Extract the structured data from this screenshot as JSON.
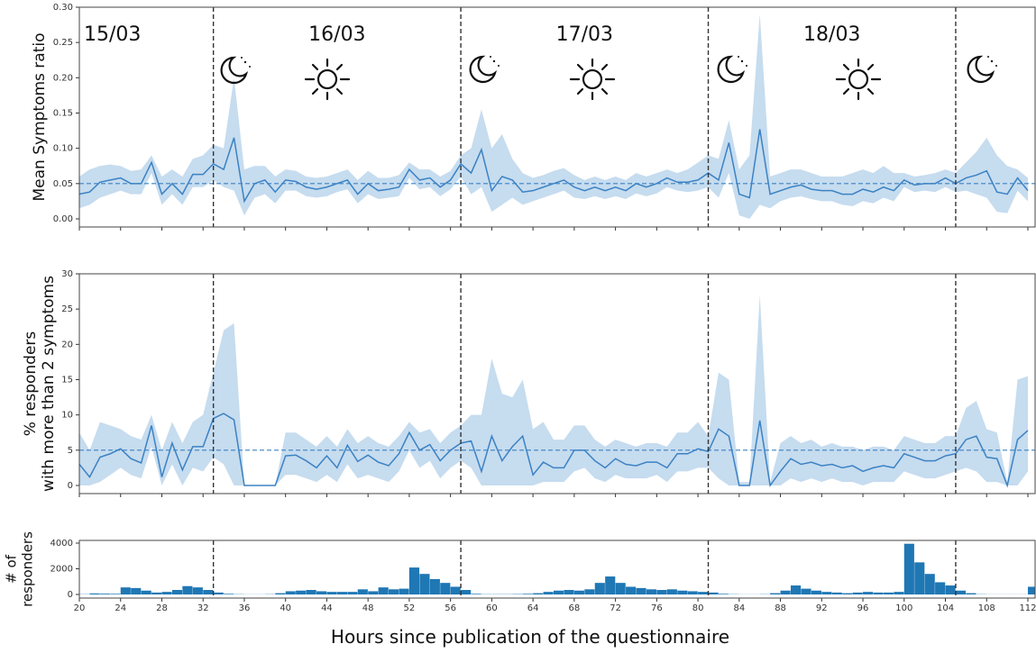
{
  "chart_data": [
    {
      "type": "line",
      "ylabel": "Mean Symptoms ratio",
      "day_labels": [
        "15/03",
        "16/03",
        "17/03",
        "18/03"
      ],
      "xlim": [
        20,
        112.7
      ],
      "ylim": [
        -0.0115,
        0.3
      ],
      "yticks": [
        {
          "value": 0,
          "label": "0.00"
        },
        {
          "value": 0.05,
          "label": "0.05"
        },
        {
          "value": 0.1,
          "label": "0.10"
        },
        {
          "value": 0.15,
          "label": "0.15"
        },
        {
          "value": 0.2,
          "label": "0.20"
        },
        {
          "value": 0.25,
          "label": "0.25"
        },
        {
          "value": 0.3,
          "label": "0.30"
        }
      ],
      "vlines": [
        33,
        57,
        81,
        105
      ],
      "hline": 0.05,
      "color": "#3b82c4",
      "band_color": "#bcd6ec",
      "x": [
        20,
        21,
        22,
        23,
        24,
        25,
        26,
        27,
        28,
        29,
        30,
        31,
        32,
        33,
        34,
        35,
        36,
        37,
        38,
        39,
        40,
        41,
        42,
        43,
        44,
        45,
        46,
        47,
        48,
        49,
        50,
        51,
        52,
        53,
        54,
        55,
        56,
        57,
        58,
        59,
        60,
        61,
        62,
        63,
        64,
        65,
        66,
        67,
        68,
        69,
        70,
        71,
        72,
        73,
        74,
        75,
        76,
        77,
        78,
        79,
        80,
        81,
        82,
        83,
        84,
        85,
        86,
        87,
        88,
        89,
        90,
        91,
        92,
        93,
        94,
        95,
        96,
        97,
        98,
        99,
        100,
        101,
        102,
        103,
        104,
        105,
        106,
        107,
        108,
        109,
        110,
        111,
        112
      ],
      "values": [
        0.035,
        0.038,
        0.052,
        0.055,
        0.058,
        0.05,
        0.05,
        0.08,
        0.035,
        0.05,
        0.035,
        0.063,
        0.063,
        0.078,
        0.07,
        0.115,
        0.025,
        0.05,
        0.055,
        0.038,
        0.055,
        0.053,
        0.045,
        0.042,
        0.045,
        0.05,
        0.055,
        0.035,
        0.05,
        0.04,
        0.042,
        0.045,
        0.07,
        0.055,
        0.058,
        0.045,
        0.055,
        0.078,
        0.065,
        0.098,
        0.04,
        0.06,
        0.055,
        0.038,
        0.04,
        0.045,
        0.05,
        0.055,
        0.045,
        0.04,
        0.045,
        0.04,
        0.045,
        0.04,
        0.05,
        0.045,
        0.05,
        0.058,
        0.052,
        0.052,
        0.055,
        0.065,
        0.055,
        0.108,
        0.035,
        0.03,
        0.127,
        0.035,
        0.04,
        0.045,
        0.048,
        0.042,
        0.04,
        0.04,
        0.035,
        0.035,
        0.042,
        0.038,
        0.045,
        0.04,
        0.055,
        0.048,
        0.05,
        0.05,
        0.058,
        0.05,
        0.058,
        0.062,
        0.068,
        0.038,
        0.035,
        0.058,
        0.04
      ],
      "upper": [
        0.06,
        0.07,
        0.075,
        0.077,
        0.075,
        0.068,
        0.07,
        0.09,
        0.06,
        0.07,
        0.06,
        0.085,
        0.09,
        0.105,
        0.1,
        0.2,
        0.07,
        0.075,
        0.075,
        0.06,
        0.07,
        0.068,
        0.06,
        0.058,
        0.06,
        0.065,
        0.07,
        0.055,
        0.068,
        0.058,
        0.058,
        0.062,
        0.08,
        0.07,
        0.07,
        0.06,
        0.068,
        0.09,
        0.1,
        0.155,
        0.1,
        0.12,
        0.085,
        0.065,
        0.058,
        0.062,
        0.068,
        0.072,
        0.062,
        0.055,
        0.06,
        0.055,
        0.06,
        0.055,
        0.065,
        0.06,
        0.065,
        0.07,
        0.065,
        0.07,
        0.08,
        0.09,
        0.085,
        0.14,
        0.07,
        0.09,
        0.29,
        0.06,
        0.065,
        0.07,
        0.07,
        0.065,
        0.06,
        0.06,
        0.06,
        0.065,
        0.07,
        0.065,
        0.075,
        0.065,
        0.065,
        0.06,
        0.062,
        0.065,
        0.07,
        0.065,
        0.08,
        0.095,
        0.115,
        0.09,
        0.075,
        0.07,
        0.058
      ],
      "lower": [
        0.015,
        0.02,
        0.03,
        0.035,
        0.04,
        0.035,
        0.035,
        0.065,
        0.02,
        0.035,
        0.02,
        0.045,
        0.045,
        0.055,
        0.045,
        0.04,
        0.005,
        0.03,
        0.035,
        0.022,
        0.04,
        0.04,
        0.032,
        0.03,
        0.032,
        0.038,
        0.042,
        0.022,
        0.035,
        0.028,
        0.03,
        0.032,
        0.058,
        0.042,
        0.045,
        0.032,
        0.042,
        0.06,
        0.035,
        0.045,
        0.01,
        0.02,
        0.03,
        0.02,
        0.025,
        0.03,
        0.035,
        0.04,
        0.03,
        0.028,
        0.032,
        0.028,
        0.032,
        0.028,
        0.036,
        0.032,
        0.036,
        0.045,
        0.04,
        0.038,
        0.04,
        0.045,
        0.03,
        0.065,
        0.005,
        0,
        0.02,
        0.015,
        0.025,
        0.03,
        0.032,
        0.028,
        0.025,
        0.025,
        0.02,
        0.018,
        0.025,
        0.022,
        0.03,
        0.025,
        0.045,
        0.038,
        0.04,
        0.038,
        0.045,
        0.038,
        0.04,
        0.035,
        0.03,
        0.01,
        0.008,
        0.04,
        0.025
      ]
    },
    {
      "type": "line",
      "ylabel": [
        "% responders",
        "with more than 2 symptoms"
      ],
      "xlim": [
        20,
        112.7
      ],
      "ylim": [
        -1.15,
        30
      ],
      "yticks": [
        0,
        5,
        10,
        15,
        20,
        25,
        30
      ],
      "vlines": [
        33,
        57,
        81,
        105
      ],
      "hline": 5,
      "color": "#3b82c4",
      "band_color": "#bcd6ec",
      "x": [
        20,
        21,
        22,
        23,
        24,
        25,
        26,
        27,
        28,
        29,
        30,
        31,
        32,
        33,
        34,
        35,
        36,
        37,
        38,
        39,
        40,
        41,
        42,
        43,
        44,
        45,
        46,
        47,
        48,
        49,
        50,
        51,
        52,
        53,
        54,
        55,
        56,
        57,
        58,
        59,
        60,
        61,
        62,
        63,
        64,
        65,
        66,
        67,
        68,
        69,
        70,
        71,
        72,
        73,
        74,
        75,
        76,
        77,
        78,
        79,
        80,
        81,
        82,
        83,
        84,
        85,
        86,
        87,
        88,
        89,
        90,
        91,
        92,
        93,
        94,
        95,
        96,
        97,
        98,
        99,
        100,
        101,
        102,
        103,
        104,
        105,
        106,
        107,
        108,
        109,
        110,
        111,
        112
      ],
      "values": [
        3,
        1.2,
        4,
        4.5,
        5.2,
        3.8,
        3.2,
        8.5,
        1.2,
        6,
        2.2,
        5.5,
        5.5,
        9.5,
        10.2,
        9.3,
        0,
        0,
        0,
        0,
        4.2,
        4.3,
        3.5,
        2.5,
        4.2,
        2.5,
        5.7,
        3.4,
        4.3,
        3.3,
        2.8,
        4.5,
        7.5,
        5,
        5.8,
        3.5,
        5,
        6,
        6.3,
        2,
        7,
        3.5,
        5.5,
        7,
        1.5,
        3.3,
        2.5,
        2.5,
        5,
        5,
        3.5,
        2.5,
        3.8,
        3,
        2.8,
        3.3,
        3.3,
        2.5,
        4.5,
        4.5,
        5.2,
        4.8,
        8,
        7,
        0,
        0,
        9.2,
        0,
        2,
        3.8,
        3,
        3.3,
        2.8,
        3,
        2.5,
        2.8,
        2,
        2.5,
        2.8,
        2.5,
        4.5,
        4,
        3.5,
        3.5,
        4.2,
        4.5,
        6.5,
        7,
        4,
        3.8,
        0,
        6.5,
        7.8
      ],
      "upper": [
        7.5,
        5,
        9,
        8.5,
        8,
        7,
        6.5,
        10,
        5,
        9,
        6,
        9,
        10,
        16,
        22,
        23,
        0,
        0,
        0,
        0,
        7.5,
        7.5,
        6.5,
        5.5,
        7,
        5.5,
        8,
        6,
        7,
        6,
        5.5,
        7,
        9,
        7.5,
        8,
        6,
        7.5,
        8.5,
        10,
        10,
        18,
        13,
        12.5,
        15,
        8,
        9,
        6.5,
        6.5,
        8.5,
        8.5,
        6.5,
        5.5,
        6.5,
        6,
        5.5,
        6,
        6,
        5.5,
        7.5,
        7.5,
        9,
        7,
        16,
        15,
        0.5,
        0.5,
        27,
        0.5,
        6,
        7,
        6,
        6.5,
        5.5,
        6,
        5.5,
        5.5,
        5,
        5.5,
        5.5,
        5,
        7,
        6.5,
        6,
        6,
        7,
        7,
        11,
        12,
        8,
        7.5,
        0.5,
        15,
        15.5
      ],
      "lower": [
        0,
        0,
        0.5,
        1.5,
        2.5,
        1.5,
        1,
        5.5,
        0,
        3,
        0,
        2.5,
        2,
        4,
        3,
        0,
        0,
        0,
        0,
        0,
        1.5,
        1.5,
        1,
        0.5,
        1.5,
        0.5,
        3,
        1,
        1.5,
        1,
        0.5,
        2,
        5,
        2.5,
        3.5,
        1,
        2.5,
        3.5,
        2.5,
        0,
        0,
        0,
        0,
        0,
        0,
        0.5,
        0.5,
        0.5,
        2,
        2.5,
        1,
        0.5,
        1.5,
        1,
        1,
        1,
        1.5,
        0.5,
        2,
        2,
        2.5,
        2.5,
        1,
        0,
        0,
        0,
        0,
        0,
        0,
        1,
        0.5,
        1,
        0.5,
        1,
        0.5,
        0.5,
        0,
        0.5,
        0.5,
        0.5,
        2,
        1.5,
        1,
        1,
        1.5,
        2,
        2.5,
        2,
        0.5,
        0.5,
        0,
        0,
        2
      ]
    },
    {
      "type": "histogram",
      "ylabel": [
        "# of",
        "responders"
      ],
      "xlabel": "Hours since publication of the questionnaire",
      "xlim": [
        20,
        112.7
      ],
      "ylim": [
        -280,
        4210
      ],
      "yticks": [
        0,
        2000,
        4000
      ],
      "xticks": [
        20,
        24,
        28,
        32,
        36,
        40,
        44,
        48,
        52,
        56,
        60,
        64,
        68,
        72,
        76,
        80,
        84,
        88,
        92,
        96,
        100,
        104,
        108,
        112
      ],
      "vlines": [
        33,
        57,
        81,
        105
      ],
      "color": "#1f77b4",
      "bins": [
        20,
        21,
        22,
        23,
        24,
        25,
        26,
        27,
        28,
        29,
        30,
        31,
        32,
        33,
        34,
        35,
        36,
        37,
        38,
        39,
        40,
        41,
        42,
        43,
        44,
        45,
        46,
        47,
        48,
        49,
        50,
        51,
        52,
        53,
        54,
        55,
        56,
        57,
        58,
        59,
        60,
        61,
        62,
        63,
        64,
        65,
        66,
        67,
        68,
        69,
        70,
        71,
        72,
        73,
        74,
        75,
        76,
        77,
        78,
        79,
        80,
        81,
        82,
        83,
        84,
        85,
        86,
        87,
        88,
        89,
        90,
        91,
        92,
        93,
        94,
        95,
        96,
        97,
        98,
        99,
        100,
        101,
        102,
        103,
        104,
        105,
        106,
        107,
        108,
        109,
        110,
        111,
        112,
        113
      ],
      "values": [
        20,
        80,
        60,
        50,
        550,
        500,
        300,
        150,
        200,
        350,
        650,
        550,
        350,
        150,
        50,
        20,
        10,
        10,
        20,
        100,
        250,
        300,
        350,
        250,
        200,
        200,
        200,
        400,
        250,
        550,
        400,
        450,
        2100,
        1600,
        1200,
        900,
        600,
        350,
        50,
        20,
        20,
        20,
        30,
        50,
        100,
        200,
        300,
        350,
        300,
        400,
        900,
        1400,
        900,
        600,
        500,
        400,
        350,
        400,
        300,
        250,
        200,
        150,
        50,
        20,
        10,
        10,
        20,
        100,
        300,
        700,
        450,
        300,
        200,
        150,
        100,
        150,
        200,
        150,
        150,
        200,
        3950,
        2500,
        1600,
        950,
        700,
        300,
        100,
        20,
        10,
        10,
        10,
        10,
        600
      ]
    }
  ]
}
